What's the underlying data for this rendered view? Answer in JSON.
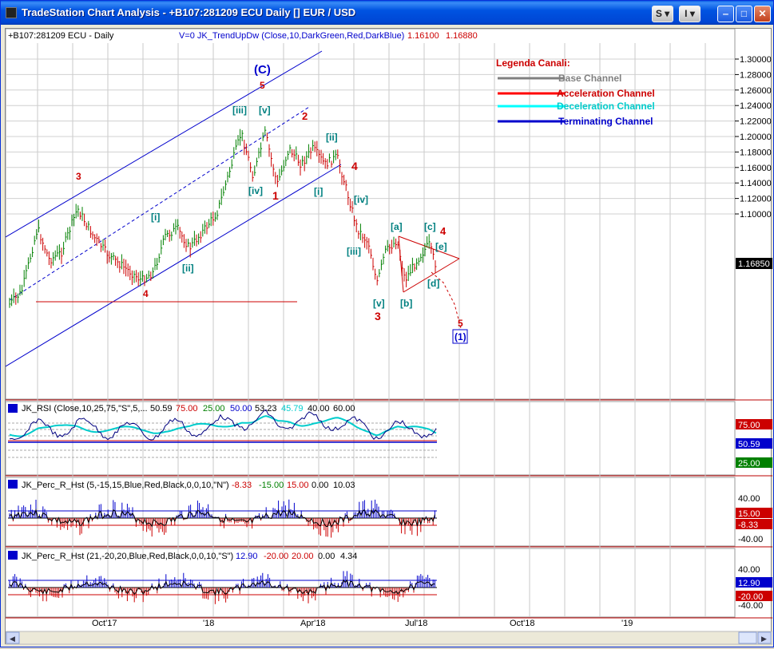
{
  "window": {
    "title": "TradeStation Chart Analysis - +B107:281209 ECU Daily [] EUR / USD",
    "btn_s": "S",
    "btn_i": "I",
    "btn_min": "‒",
    "btn_max": "□",
    "btn_close": "✕"
  },
  "price_panel": {
    "symbol_label": "+B107:281209 ECU - Daily",
    "indicator_label": "V=0  JK_TrendUpDw (Close,10,DarkGreen,Red,DarkBlue)",
    "indicator_v1": "1.16100",
    "indicator_v2": "1.16880",
    "last_price": "1.16850",
    "legend": {
      "title": "Legenda Canali:",
      "items": [
        {
          "label": "Base Channel",
          "color": "#808080"
        },
        {
          "label": "Acceleration Channel",
          "color": "#ff0000"
        },
        {
          "label": "Deceleration Channel",
          "color": "#00ffff"
        },
        {
          "label": "Terminating Channel",
          "color": "#0000cc"
        }
      ]
    },
    "wave_labels": {
      "c_big": "(C)",
      "w5_top": "5",
      "w3": "3",
      "w4": "4",
      "i1": "[i]",
      "ii1": "[ii]",
      "iii1": "[iii]",
      "v1": "[v]",
      "iv1": "[iv]",
      "w1": "1",
      "w2": "2",
      "ii2": "[ii]",
      "i2": "[i]",
      "w4b": "4",
      "iv2": "[iv]",
      "iii2": "[iii]",
      "v2": "[v]",
      "w3b": "3",
      "a": "[a]",
      "b": "[b]",
      "c": "[c]",
      "d": "[d]",
      "e": "[e]",
      "w4c": "4",
      "w5b": "5",
      "one_box": "(1)"
    }
  },
  "axis": {
    "price_ticks": [
      "1.30000",
      "1.28000",
      "1.26000",
      "1.24000",
      "1.22000",
      "1.20000",
      "1.18000",
      "1.16000",
      "1.14000",
      "1.12000",
      "1.10000"
    ],
    "rsi_ticks": [
      "75.00",
      "50.59",
      "25.00"
    ],
    "perc1_ticks": [
      "40.00",
      "15.00",
      "-8.33",
      "-40.00"
    ],
    "perc2_ticks": [
      "40.00",
      "12.90",
      "-20.00",
      "-40.00"
    ],
    "dates": [
      "Oct'17",
      "'18",
      "Apr'18",
      "Jul'18",
      "Oct'18",
      "'19"
    ]
  },
  "rsi_panel": {
    "name": "JK_RSI (Close,10,25,75,\"S\",5,...",
    "values": [
      "50.59",
      "75.00",
      "25.00",
      "50.00",
      "53.23",
      "45.79",
      "40.00",
      "60.00"
    ]
  },
  "perc1_panel": {
    "name": "JK_Perc_R_Hst (5,-15,15,Blue,Red,Black,0,0,10,\"N\")",
    "values": [
      "-8.33",
      "-15.00",
      "15.00",
      "0.00",
      "10.03"
    ]
  },
  "perc2_panel": {
    "name": "JK_Perc_R_Hst (21,-20,20,Blue,Red,Black,0,0,10,\"S\")",
    "values": [
      "12.90",
      "-20.00",
      "20.00",
      "0.00",
      "4.34"
    ]
  },
  "colors": {
    "up_bar": "#008000",
    "down_bar": "#cc0000",
    "neutral_bar": "#000080",
    "hist_pos": "#0000cc",
    "hist_neg": "#cc0000",
    "wave_red": "#cc0000",
    "wave_teal": "#008080",
    "wave_blue": "#0000cc"
  }
}
